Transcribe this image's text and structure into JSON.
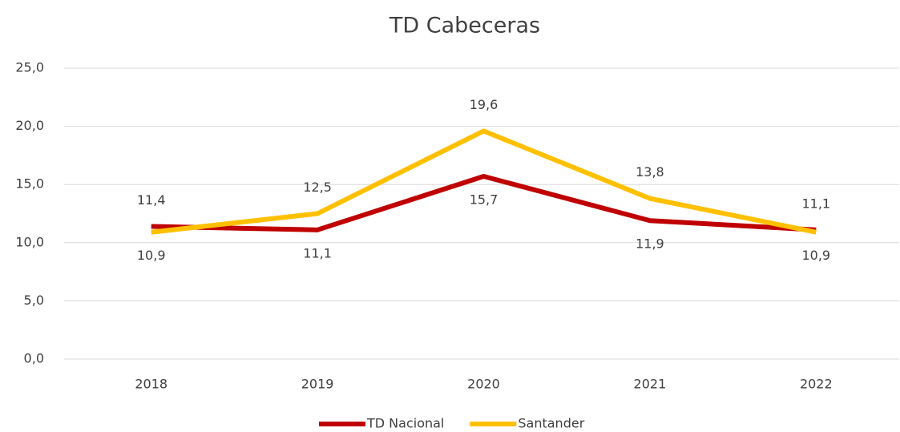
{
  "chart_data": {
    "type": "line",
    "title": "TD Cabeceras",
    "categories": [
      "2018",
      "2019",
      "2020",
      "2021",
      "2022"
    ],
    "series": [
      {
        "name": "TD Nacional",
        "color": "#c00000",
        "values": [
          11.4,
          11.1,
          15.7,
          11.9,
          11.1
        ],
        "value_labels": [
          "11,4",
          "11,1",
          "15,7",
          "11,9",
          "11,1"
        ]
      },
      {
        "name": "Santander",
        "color": "#ffc000",
        "values": [
          10.9,
          12.5,
          19.6,
          13.8,
          10.9
        ],
        "value_labels": [
          "10,9",
          "12,5",
          "19,6",
          "13,8",
          "10,9"
        ]
      }
    ],
    "ylim": [
      0,
      25
    ],
    "yticks": [
      {
        "value": 0,
        "label": "0,0"
      },
      {
        "value": 5,
        "label": "5,0"
      },
      {
        "value": 10,
        "label": "10,0"
      },
      {
        "value": 15,
        "label": "15,0"
      },
      {
        "value": 20,
        "label": "20,0"
      },
      {
        "value": 25,
        "label": "25,0"
      }
    ],
    "grid": true,
    "legend": "bottom"
  }
}
